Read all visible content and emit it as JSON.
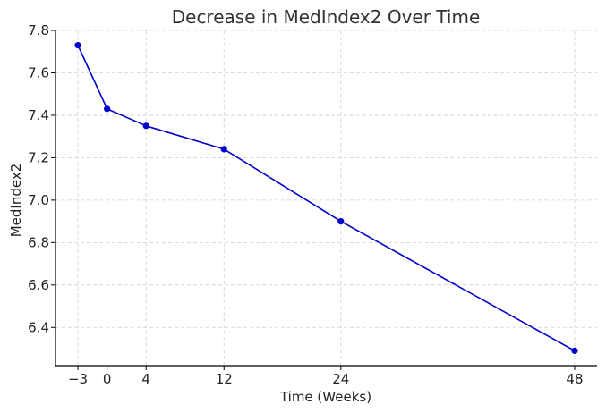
{
  "chart_data": {
    "type": "line",
    "title": "Decrease in MedIndex2 Over Time",
    "xlabel": "Time (Weeks)",
    "ylabel": "MedIndex2",
    "xlim": [
      -5.3,
      50.3
    ],
    "ylim": [
      6.22,
      7.8
    ],
    "x_ticks": [
      -3,
      0,
      4,
      12,
      24,
      48
    ],
    "x_tick_labels": [
      "−3",
      "0",
      "4",
      "12",
      "24",
      "48"
    ],
    "y_ticks": [
      6.4,
      6.6,
      6.8,
      7.0,
      7.2,
      7.4,
      7.6,
      7.8
    ],
    "y_tick_labels": [
      "6.4",
      "6.6",
      "6.8",
      "7.0",
      "7.2",
      "7.4",
      "7.6",
      "7.8"
    ],
    "grid": true,
    "series": [
      {
        "color": "#0000cc",
        "marker": "circle",
        "x": [
          -3,
          0,
          4,
          12,
          24,
          48
        ],
        "y": [
          7.73,
          7.43,
          7.35,
          7.24,
          6.9,
          6.29
        ]
      }
    ]
  }
}
